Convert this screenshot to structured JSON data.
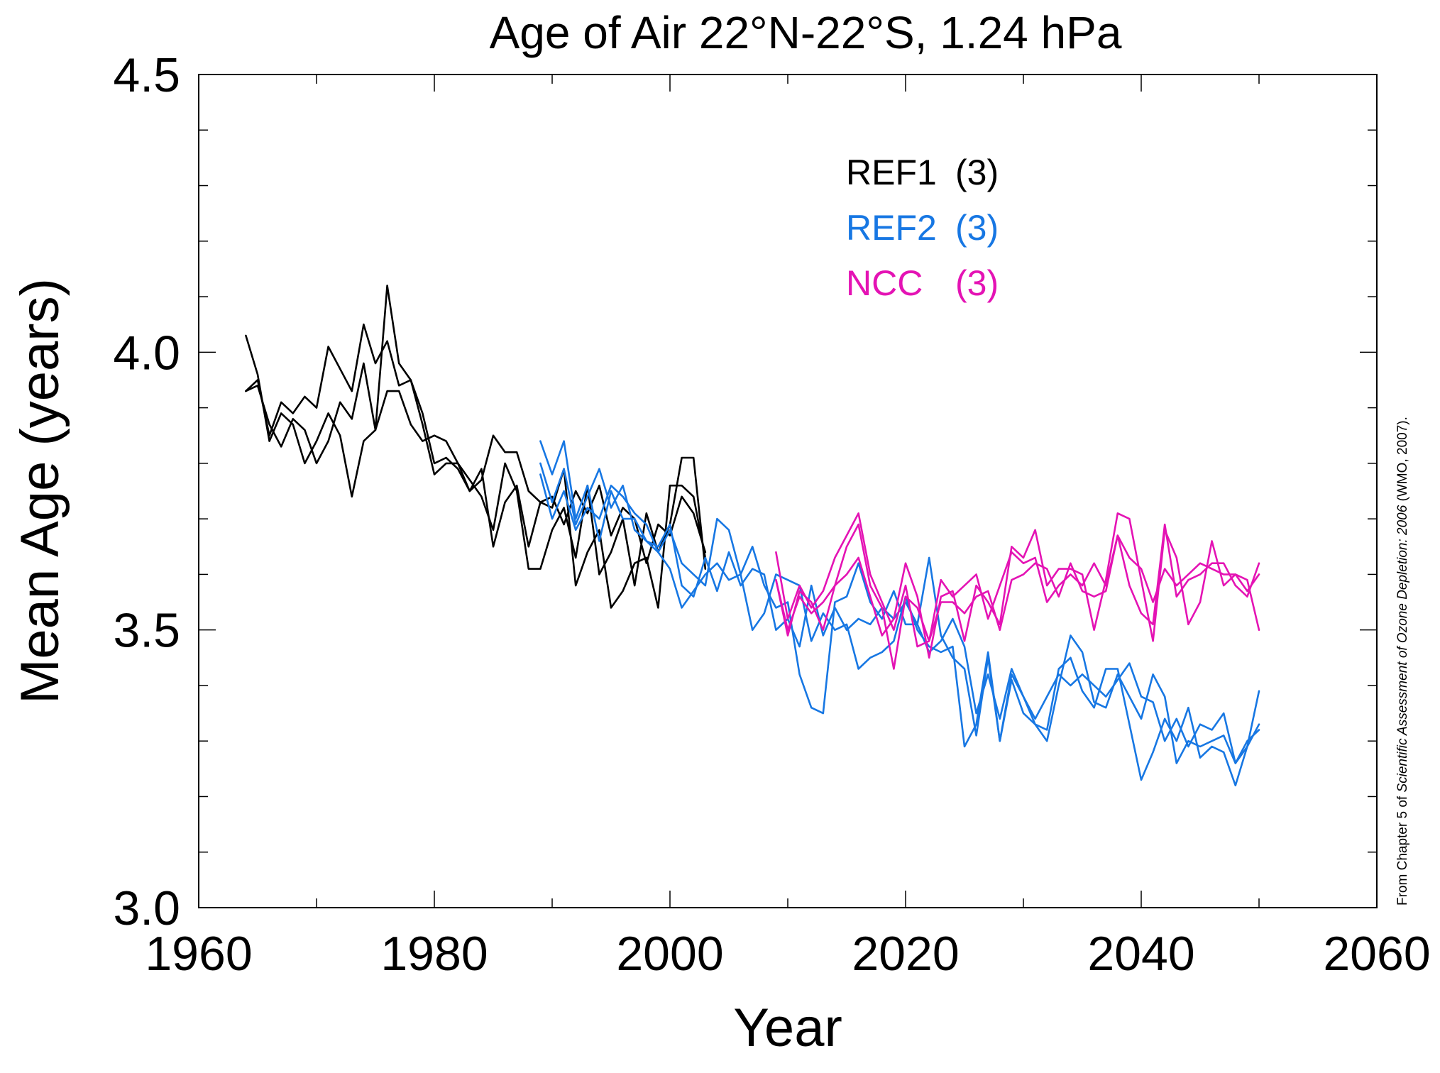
{
  "chart_data": {
    "type": "line",
    "title": "Age of Air 22°N-22°S, 1.24 hPa",
    "xlabel": "Year",
    "ylabel": "Mean Age (years)",
    "xlim": [
      1960,
      2060
    ],
    "ylim": [
      3.0,
      4.5
    ],
    "x_ticks": [
      "1960",
      "1980",
      "2000",
      "2020",
      "2040",
      "2060"
    ],
    "y_ticks": [
      "3.0",
      "3.5",
      "4.0",
      "4.5"
    ],
    "grid": false,
    "legend": {
      "placement": "top-center",
      "entries": [
        {
          "label": "REF1",
          "count": "(3)",
          "color": "#000000"
        },
        {
          "label": "REF2",
          "count": "(3)",
          "color": "#1777e3"
        },
        {
          "label": "NCC ",
          "count": "(3)",
          "color": "#e413b4"
        }
      ]
    },
    "source_note": "From Chapter 5 of Scientific Assessment of Ozone Depletion: 2006 (WMO, 2007).",
    "series": [
      {
        "group": "REF1",
        "color": "#000000",
        "x": [
          1964,
          1965,
          1966,
          1967,
          1968,
          1969,
          1970,
          1971,
          1972,
          1973,
          1974,
          1975,
          1976,
          1977,
          1978,
          1979,
          1980,
          1981,
          1982,
          1983,
          1984,
          1985,
          1986,
          1987,
          1988,
          1989,
          1990,
          1991,
          1992,
          1993,
          1994,
          1995,
          1996,
          1997,
          1998,
          1999,
          2000,
          2001,
          2002,
          2003
        ],
        "y": [
          4.03,
          3.96,
          3.84,
          3.89,
          3.87,
          3.8,
          3.84,
          3.89,
          3.85,
          3.74,
          3.84,
          3.86,
          4.12,
          3.98,
          3.95,
          3.87,
          3.78,
          3.8,
          3.8,
          3.75,
          3.79,
          3.65,
          3.73,
          3.76,
          3.65,
          3.73,
          3.72,
          3.79,
          3.58,
          3.64,
          3.68,
          3.54,
          3.57,
          3.62,
          3.63,
          3.54,
          3.76,
          3.76,
          3.74,
          3.63
        ]
      },
      {
        "group": "REF1",
        "color": "#000000",
        "x": [
          1964,
          1965,
          1966,
          1967,
          1968,
          1969,
          1970,
          1971,
          1972,
          1973,
          1974,
          1975,
          1976,
          1977,
          1978,
          1979,
          1980,
          1981,
          1982,
          1983,
          1984,
          1985,
          1986,
          1987,
          1988,
          1989,
          1990,
          1991,
          1992,
          1993,
          1994,
          1995,
          1996,
          1997,
          1998,
          1999,
          2000,
          2001,
          2002,
          2003
        ],
        "y": [
          3.93,
          3.95,
          3.85,
          3.91,
          3.89,
          3.92,
          3.9,
          4.01,
          3.97,
          3.93,
          4.05,
          3.98,
          4.02,
          3.94,
          3.95,
          3.89,
          3.8,
          3.81,
          3.79,
          3.75,
          3.77,
          3.85,
          3.82,
          3.82,
          3.75,
          3.73,
          3.74,
          3.69,
          3.75,
          3.71,
          3.76,
          3.67,
          3.72,
          3.7,
          3.62,
          3.69,
          3.67,
          3.74,
          3.71,
          3.64
        ]
      },
      {
        "group": "REF1",
        "color": "#000000",
        "x": [
          1964,
          1965,
          1966,
          1967,
          1968,
          1969,
          1970,
          1971,
          1972,
          1973,
          1974,
          1975,
          1976,
          1977,
          1978,
          1979,
          1980,
          1981,
          1982,
          1983,
          1984,
          1985,
          1986,
          1987,
          1988,
          1989,
          1990,
          1991,
          1992,
          1993,
          1994,
          1995,
          1996,
          1997,
          1998,
          1999,
          2000,
          2001,
          2002,
          2003
        ],
        "y": [
          3.93,
          3.94,
          3.87,
          3.83,
          3.88,
          3.86,
          3.8,
          3.84,
          3.91,
          3.88,
          3.98,
          3.86,
          3.93,
          3.93,
          3.87,
          3.84,
          3.85,
          3.84,
          3.8,
          3.77,
          3.74,
          3.68,
          3.8,
          3.75,
          3.61,
          3.61,
          3.68,
          3.72,
          3.63,
          3.76,
          3.6,
          3.64,
          3.7,
          3.58,
          3.71,
          3.64,
          3.69,
          3.81,
          3.81,
          3.61
        ]
      },
      {
        "group": "REF2",
        "color": "#1777e3",
        "x": [
          1989,
          1990,
          1991,
          1992,
          1993,
          1994,
          1995,
          1996,
          1997,
          1998,
          1999,
          2000,
          2001,
          2002,
          2003,
          2004,
          2005,
          2006,
          2007,
          2008,
          2009,
          2010,
          2011,
          2012,
          2013,
          2014,
          2015,
          2016,
          2017,
          2018,
          2019,
          2020,
          2021,
          2022,
          2023,
          2024,
          2025,
          2026,
          2027,
          2028,
          2029,
          2030,
          2031,
          2032,
          2033,
          2034,
          2035,
          2036,
          2037,
          2038,
          2039,
          2040,
          2041,
          2042,
          2043,
          2044,
          2045,
          2046,
          2047,
          2048,
          2049,
          2050
        ],
        "y": [
          3.84,
          3.78,
          3.84,
          3.7,
          3.76,
          3.66,
          3.75,
          3.7,
          3.7,
          3.66,
          3.64,
          3.61,
          3.54,
          3.57,
          3.6,
          3.62,
          3.59,
          3.6,
          3.5,
          3.53,
          3.6,
          3.59,
          3.58,
          3.48,
          3.53,
          3.5,
          3.51,
          3.43,
          3.45,
          3.46,
          3.48,
          3.56,
          3.5,
          3.47,
          3.46,
          3.47,
          3.29,
          3.33,
          3.46,
          3.3,
          3.42,
          3.38,
          3.33,
          3.3,
          3.4,
          3.49,
          3.46,
          3.37,
          3.36,
          3.42,
          3.38,
          3.34,
          3.42,
          3.38,
          3.26,
          3.3,
          3.29,
          3.3,
          3.31,
          3.26,
          3.29,
          3.33
        ]
      },
      {
        "group": "REF2",
        "color": "#1777e3",
        "x": [
          1989,
          1990,
          1991,
          1992,
          1993,
          1994,
          1995,
          1996,
          1997,
          1998,
          1999,
          2000,
          2001,
          2002,
          2003,
          2004,
          2005,
          2006,
          2007,
          2008,
          2009,
          2010,
          2011,
          2012,
          2013,
          2014,
          2015,
          2016,
          2017,
          2018,
          2019,
          2020,
          2021,
          2022,
          2023,
          2024,
          2025,
          2026,
          2027,
          2028,
          2029,
          2030,
          2031,
          2032,
          2033,
          2034,
          2035,
          2036,
          2037,
          2038,
          2039,
          2040,
          2041,
          2042,
          2043,
          2044,
          2045,
          2046,
          2047,
          2048,
          2049,
          2050
        ],
        "y": [
          3.8,
          3.73,
          3.79,
          3.69,
          3.74,
          3.79,
          3.72,
          3.76,
          3.68,
          3.66,
          3.65,
          3.69,
          3.58,
          3.56,
          3.63,
          3.57,
          3.64,
          3.58,
          3.61,
          3.6,
          3.5,
          3.52,
          3.47,
          3.58,
          3.49,
          3.54,
          3.5,
          3.52,
          3.51,
          3.54,
          3.52,
          3.55,
          3.51,
          3.46,
          3.48,
          3.52,
          3.47,
          3.35,
          3.42,
          3.34,
          3.43,
          3.38,
          3.34,
          3.38,
          3.42,
          3.4,
          3.42,
          3.4,
          3.38,
          3.41,
          3.44,
          3.38,
          3.37,
          3.3,
          3.34,
          3.29,
          3.33,
          3.32,
          3.35,
          3.26,
          3.3,
          3.32
        ]
      },
      {
        "group": "REF2",
        "color": "#1777e3",
        "x": [
          1989,
          1990,
          1991,
          1992,
          1993,
          1994,
          1995,
          1996,
          1997,
          1998,
          1999,
          2000,
          2001,
          2002,
          2003,
          2004,
          2005,
          2006,
          2007,
          2008,
          2009,
          2010,
          2011,
          2012,
          2013,
          2014,
          2015,
          2016,
          2017,
          2018,
          2019,
          2020,
          2021,
          2022,
          2023,
          2024,
          2025,
          2026,
          2027,
          2028,
          2029,
          2030,
          2031,
          2032,
          2033,
          2034,
          2035,
          2036,
          2037,
          2038,
          2039,
          2040,
          2041,
          2042,
          2043,
          2044,
          2045,
          2046,
          2047,
          2048,
          2049,
          2050
        ],
        "y": [
          3.78,
          3.7,
          3.75,
          3.68,
          3.72,
          3.7,
          3.76,
          3.74,
          3.71,
          3.69,
          3.64,
          3.68,
          3.62,
          3.6,
          3.58,
          3.7,
          3.68,
          3.6,
          3.65,
          3.58,
          3.54,
          3.55,
          3.42,
          3.36,
          3.35,
          3.55,
          3.56,
          3.62,
          3.55,
          3.52,
          3.57,
          3.51,
          3.51,
          3.63,
          3.49,
          3.45,
          3.43,
          3.31,
          3.45,
          3.3,
          3.41,
          3.35,
          3.33,
          3.32,
          3.43,
          3.45,
          3.39,
          3.36,
          3.43,
          3.43,
          3.33,
          3.23,
          3.28,
          3.34,
          3.3,
          3.36,
          3.27,
          3.29,
          3.28,
          3.22,
          3.29,
          3.39
        ]
      },
      {
        "group": "NCC",
        "color": "#e413b4",
        "x": [
          2009,
          2010,
          2011,
          2012,
          2013,
          2014,
          2015,
          2016,
          2017,
          2018,
          2019,
          2020,
          2021,
          2022,
          2023,
          2024,
          2025,
          2026,
          2027,
          2028,
          2029,
          2030,
          2031,
          2032,
          2033,
          2034,
          2035,
          2036,
          2037,
          2038,
          2039,
          2040,
          2041,
          2042,
          2043,
          2044,
          2045,
          2046,
          2047,
          2048,
          2049,
          2050
        ],
        "y": [
          3.64,
          3.52,
          3.58,
          3.54,
          3.57,
          3.63,
          3.67,
          3.71,
          3.6,
          3.55,
          3.5,
          3.58,
          3.47,
          3.48,
          3.59,
          3.56,
          3.58,
          3.6,
          3.52,
          3.58,
          3.64,
          3.62,
          3.63,
          3.55,
          3.58,
          3.6,
          3.58,
          3.62,
          3.58,
          3.67,
          3.58,
          3.53,
          3.51,
          3.69,
          3.56,
          3.59,
          3.6,
          3.62,
          3.62,
          3.58,
          3.56,
          3.62
        ]
      },
      {
        "group": "NCC",
        "color": "#e413b4",
        "x": [
          2009,
          2010,
          2011,
          2012,
          2013,
          2014,
          2015,
          2016,
          2017,
          2018,
          2019,
          2020,
          2021,
          2022,
          2023,
          2024,
          2025,
          2026,
          2027,
          2028,
          2029,
          2030,
          2031,
          2032,
          2033,
          2034,
          2035,
          2036,
          2037,
          2038,
          2039,
          2040,
          2041,
          2042,
          2043,
          2044,
          2045,
          2046,
          2047,
          2048,
          2049,
          2050
        ],
        "y": [
          3.59,
          3.49,
          3.57,
          3.55,
          3.5,
          3.58,
          3.65,
          3.69,
          3.58,
          3.54,
          3.43,
          3.56,
          3.54,
          3.48,
          3.55,
          3.55,
          3.53,
          3.56,
          3.57,
          3.5,
          3.59,
          3.6,
          3.62,
          3.61,
          3.56,
          3.62,
          3.57,
          3.56,
          3.57,
          3.67,
          3.63,
          3.61,
          3.55,
          3.61,
          3.58,
          3.6,
          3.62,
          3.61,
          3.6,
          3.6,
          3.59,
          3.5
        ]
      },
      {
        "group": "NCC",
        "color": "#e413b4",
        "x": [
          2009,
          2010,
          2011,
          2012,
          2013,
          2014,
          2015,
          2016,
          2017,
          2018,
          2019,
          2020,
          2021,
          2022,
          2023,
          2024,
          2025,
          2026,
          2027,
          2028,
          2029,
          2030,
          2031,
          2032,
          2033,
          2034,
          2035,
          2036,
          2037,
          2038,
          2039,
          2040,
          2041,
          2042,
          2043,
          2044,
          2045,
          2046,
          2047,
          2048,
          2049,
          2050
        ],
        "y": [
          3.59,
          3.5,
          3.56,
          3.53,
          3.55,
          3.58,
          3.6,
          3.63,
          3.56,
          3.49,
          3.52,
          3.62,
          3.56,
          3.45,
          3.56,
          3.57,
          3.48,
          3.58,
          3.55,
          3.51,
          3.65,
          3.63,
          3.68,
          3.58,
          3.61,
          3.61,
          3.6,
          3.5,
          3.59,
          3.71,
          3.7,
          3.59,
          3.48,
          3.68,
          3.63,
          3.51,
          3.55,
          3.66,
          3.58,
          3.6,
          3.57,
          3.6
        ]
      }
    ]
  }
}
